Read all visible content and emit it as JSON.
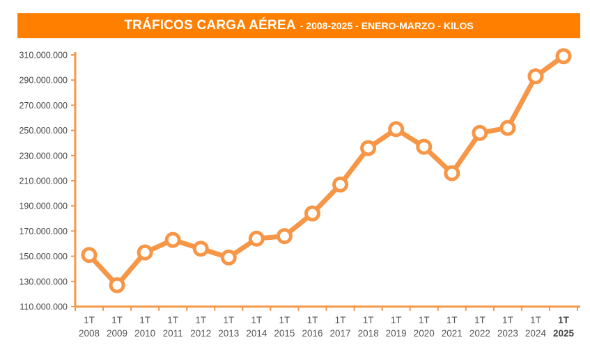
{
  "header": {
    "title": "TRÁFICOS CARGA AÉREA",
    "subtitle": "- 2008-2025 - ENERO-MARZO - KILOS"
  },
  "colors": {
    "banner": "#ff8000",
    "line": "#f79646",
    "axis": "#f79646",
    "marker_fill": "#ffffff"
  },
  "chart_data": {
    "type": "line",
    "categories": [
      [
        "1T",
        "2008"
      ],
      [
        "1T",
        "2009"
      ],
      [
        "1T",
        "2010"
      ],
      [
        "1T",
        "2011"
      ],
      [
        "1T",
        "2012"
      ],
      [
        "1T",
        "2013"
      ],
      [
        "1T",
        "2014"
      ],
      [
        "1T",
        "2015"
      ],
      [
        "1T",
        "2016"
      ],
      [
        "1T",
        "2017"
      ],
      [
        "1T",
        "2018"
      ],
      [
        "1T",
        "2019"
      ],
      [
        "1T",
        "2020"
      ],
      [
        "1T",
        "2021"
      ],
      [
        "1T",
        "2022"
      ],
      [
        "1T",
        "2023"
      ],
      [
        "1T",
        "2024"
      ],
      [
        "1T",
        "2025"
      ]
    ],
    "highlight_category": 17,
    "values": [
      151000000,
      127000000,
      153000000,
      163000000,
      156000000,
      149000000,
      164000000,
      166000000,
      184000000,
      207000000,
      236000000,
      251000000,
      237000000,
      216000000,
      248000000,
      252000000,
      293000000,
      309000000
    ],
    "yticks": [
      "110.000.000",
      "130.000.000",
      "150.000.000",
      "170.000.000",
      "190.000.000",
      "210.000.000",
      "230.000.000",
      "250.000.000",
      "270.000.000",
      "290.000.000",
      "310.000.000"
    ],
    "ylim": [
      110000000,
      310000000
    ],
    "grid": false,
    "legend": "none"
  }
}
